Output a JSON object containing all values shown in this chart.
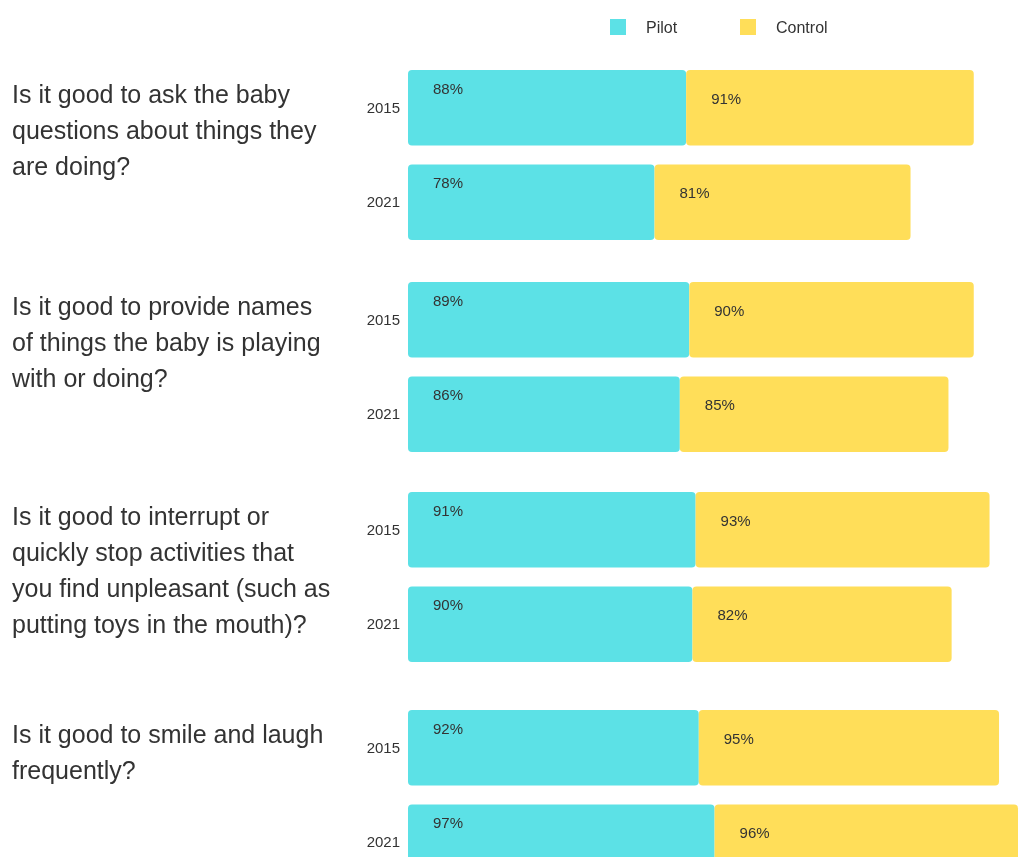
{
  "chart_data": [
    {
      "type": "bar",
      "orientation": "horizontal",
      "stacked": true,
      "title": "Is it good to ask the baby questions about things they are doing?",
      "categories": [
        "2015",
        "2021"
      ],
      "legend": "top right",
      "series": [
        {
          "name": "Pilot",
          "color": "#5ce1e6",
          "values": [
            88,
            78
          ],
          "value_labels": [
            "88%",
            "78%"
          ]
        },
        {
          "name": "Control",
          "color": "#ffde59",
          "values": [
            91,
            81
          ],
          "value_labels": [
            "91%",
            "81%"
          ]
        }
      ]
    },
    {
      "type": "bar",
      "orientation": "horizontal",
      "stacked": true,
      "title": "Is it good to provide names of things the baby is playing with or doing?",
      "categories": [
        "2015",
        "2021"
      ],
      "series": [
        {
          "color": "#5ce1e6",
          "values": [
            89,
            86
          ],
          "value_labels": [
            "89%",
            "86%"
          ]
        },
        {
          "color": "#ffde59",
          "values": [
            90,
            85
          ],
          "value_labels": [
            "90%",
            "85%"
          ]
        }
      ]
    },
    {
      "type": "bar",
      "orientation": "horizontal",
      "stacked": true,
      "title": "Is it good to interrupt or quickly stop activities that you find unpleasant (such as putting toys in the mouth)?",
      "categories": [
        "2015",
        "2021"
      ],
      "series": [
        {
          "color": "#5ce1e6",
          "values": [
            91,
            90
          ],
          "value_labels": [
            "91%",
            "90%"
          ]
        },
        {
          "color": "#ffde59",
          "values": [
            93,
            82
          ],
          "value_labels": [
            "93%",
            "82%"
          ]
        }
      ]
    },
    {
      "type": "bar",
      "orientation": "horizontal",
      "stacked": true,
      "title": "Is it good to smile and laugh frequently?",
      "categories": [
        "2015",
        "2021"
      ],
      "series": [
        {
          "color": "#5ce1e6",
          "values": [
            92,
            97
          ],
          "value_labels": [
            "92%",
            "97%"
          ]
        },
        {
          "color": "#ffde59",
          "values": [
            95,
            96
          ],
          "value_labels": [
            "95%",
            "96%"
          ]
        }
      ]
    }
  ]
}
